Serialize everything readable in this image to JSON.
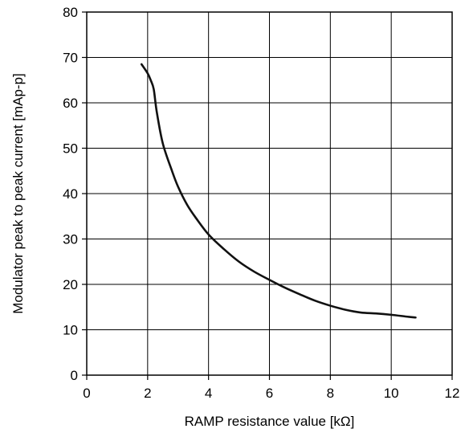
{
  "chart_data": {
    "type": "line",
    "title": "",
    "xlabel": "RAMP resistance value [kΩ]",
    "ylabel": "Modulator peak to peak current [mAp-p]",
    "xlim": [
      0,
      12
    ],
    "ylim": [
      0,
      80
    ],
    "x_ticks": [
      0,
      2,
      4,
      6,
      8,
      10,
      12
    ],
    "y_ticks": [
      0,
      10,
      20,
      30,
      40,
      50,
      60,
      70,
      80
    ],
    "grid": true,
    "line_color": "#111111",
    "series": [
      {
        "x": [
          1.8,
          2.0,
          2.1,
          2.2,
          2.3,
          2.5,
          2.8,
          3.0,
          3.3,
          3.6,
          4.0,
          4.5,
          5.0,
          5.5,
          6.0,
          6.5,
          7.0,
          7.5,
          8.0,
          8.5,
          9.0,
          9.5,
          10.0,
          10.5,
          10.8
        ],
        "y": [
          68.5,
          66.5,
          65.0,
          63.0,
          58.0,
          51.0,
          45.0,
          41.5,
          37.5,
          34.5,
          31.0,
          27.8,
          25.0,
          22.8,
          21.0,
          19.3,
          17.8,
          16.4,
          15.3,
          14.4,
          13.8,
          13.6,
          13.3,
          12.9,
          12.7
        ]
      }
    ]
  }
}
